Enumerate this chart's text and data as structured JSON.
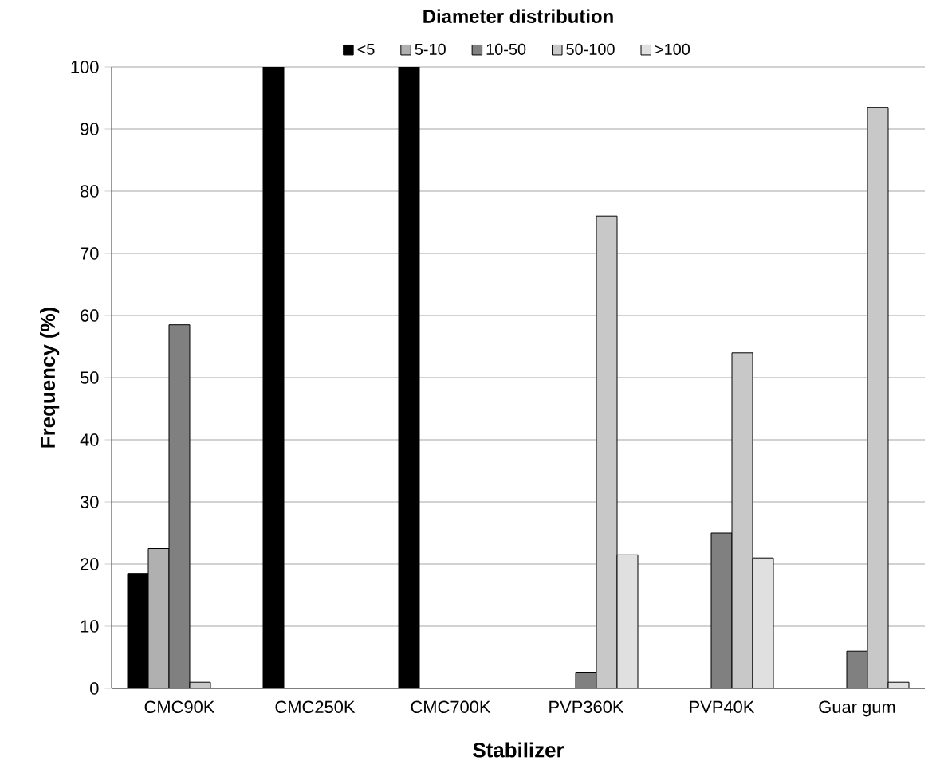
{
  "chart_data": {
    "type": "bar",
    "title": "Diameter distribution",
    "xlabel": "Stabilizer",
    "ylabel": "Frequency (%)",
    "categories": [
      "CMC90K",
      "CMC250K",
      "CMC700K",
      "PVP360K",
      "PVP40K",
      "Guar gum"
    ],
    "series": [
      {
        "name": "<5",
        "color": "#000000",
        "values": [
          18.5,
          100,
          100,
          0,
          0,
          0
        ]
      },
      {
        "name": "5-10",
        "color": "#b0b0b0",
        "values": [
          22.5,
          0,
          0,
          0,
          0,
          0
        ]
      },
      {
        "name": "10-50",
        "color": "#808080",
        "values": [
          58.5,
          0,
          0,
          2.5,
          25,
          6
        ]
      },
      {
        "name": "50-100",
        "color": "#c8c8c8",
        "values": [
          1,
          0,
          0,
          76,
          54,
          93.5
        ]
      },
      {
        "name": ">100",
        "color": "#e0e0e0",
        "values": [
          0,
          0,
          0,
          21.5,
          21,
          1
        ]
      }
    ],
    "ylim": [
      0,
      100
    ],
    "yticks": [
      0,
      10,
      20,
      30,
      40,
      50,
      60,
      70,
      80,
      90,
      100
    ],
    "grid": "y",
    "legend": "top"
  }
}
